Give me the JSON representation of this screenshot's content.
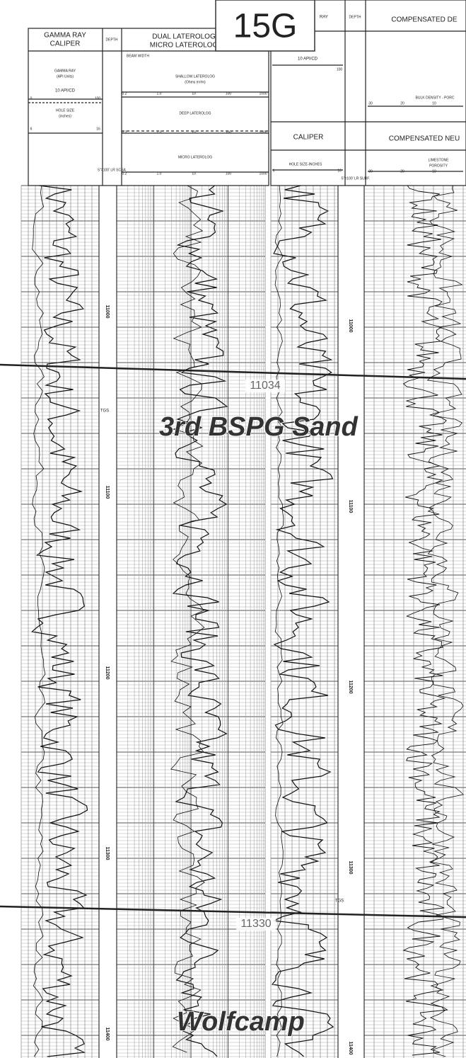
{
  "badge": "15G",
  "left_header": {
    "gr_title": "GAMMA RAY",
    "caliper_title": "CALIPER",
    "depth": "DEPTH",
    "dll_title": "DUAL LATEROLOG",
    "mll_title": "MICRO LATEROLOG",
    "beam_width": "BEAM WIDTH",
    "gr_curve": "GAMMA RAY",
    "gr_units": "(API Units)",
    "gr_scale": "10 API/CD",
    "gr_min": "0",
    "gr_max": "100",
    "hole_size": "HOLE SIZE",
    "hole_units": "(inches)",
    "hole_min": "6",
    "hole_max": "16",
    "shallow": "SHALLOW LATEROLOG",
    "deep": "DEEP LATEROLOG",
    "micro": "MICRO LATEROLOG",
    "ohms": "(Ohms m²/m)",
    "res_scale": [
      "0.2",
      "1.0",
      "10",
      "100",
      "1000"
    ],
    "depth_scale": "5\"=100' LR SCSA"
  },
  "right_header": {
    "gr_title": "RAY",
    "depth": "DEPTH",
    "den_title": "COMPENSATED DE",
    "gr_scale": "10 API/CD",
    "gr_max": "100",
    "bulk": "BULK DENSITY - PORC",
    "den_scale": [
      "30",
      "20",
      "10"
    ],
    "caliper": "CALIPER",
    "neu_title": "COMPENSATED NEU",
    "hole_size": "HOLE SIZE-INCHES",
    "hole_min": "6",
    "hole_max": "16",
    "depth_scale": "5\"=100' LR SURF.",
    "lime": "LIMESTONE",
    "porosity": "POROSITY",
    "neu_scale": [
      "30",
      "20",
      "10"
    ]
  },
  "depth_labels": {
    "left": [
      11000,
      11100,
      11200,
      11300,
      11400
    ],
    "right": [
      11000,
      11100,
      11200,
      11300,
      11400
    ]
  },
  "annotations": [
    "TGS",
    "TGS"
  ],
  "markers": [
    {
      "depth": "11034",
      "formation": "3rd BSPG Sand"
    },
    {
      "depth": "11330",
      "formation": "Wolfcamp"
    }
  ]
}
